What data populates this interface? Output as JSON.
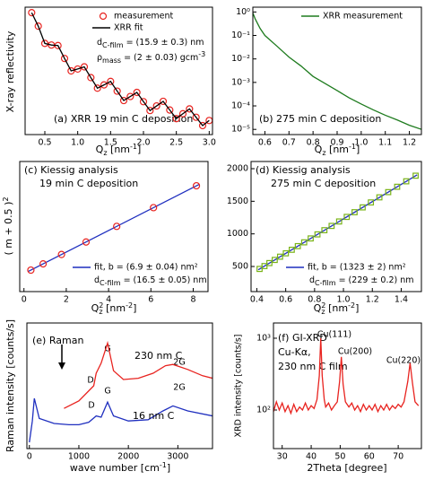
{
  "chart_data": [
    {
      "type": "line",
      "title": "(a) XRR 19 min C deposition",
      "xlabel": [
        "Q",
        "z",
        " [nm",
        "-1",
        "]"
      ],
      "ylabel": "X-ray reflectivity",
      "log_y": true,
      "xlim": [
        0.2,
        3.05
      ],
      "ylim": [
        3e-05,
        1.6
      ],
      "xticks": [
        0.5,
        {
          "value": 1,
          "label": "1.0"
        },
        1.5,
        {
          "value": 2,
          "label": "2.0"
        },
        2.5,
        {
          "value": 3,
          "label": "3.0"
        }
      ],
      "legend": "top-right",
      "notes": [
        [
          "d",
          "C-film",
          " = (15.9 ± 0.3) nm"
        ],
        [
          "ρ",
          "mass",
          " = (2 ± 0.03) gcm",
          "-3"
        ]
      ],
      "series": [
        {
          "name": "measurement",
          "color": "#e8231f",
          "style": "circles",
          "x": [
            0.3,
            0.4,
            0.5,
            0.6,
            0.7,
            0.8,
            0.9,
            1.0,
            1.1,
            1.2,
            1.3,
            1.4,
            1.5,
            1.6,
            1.7,
            1.8,
            1.9,
            2.0,
            2.1,
            2.2,
            2.3,
            2.4,
            2.5,
            2.6,
            2.7,
            2.8,
            2.9,
            3.0
          ],
          "values": [
            1,
            0.316,
            0.0724,
            0.0631,
            0.0603,
            0.02,
            0.00692,
            0.00813,
            0.00977,
            0.00389,
            0.00158,
            0.00209,
            0.00282,
            0.00123,
            0.00055,
            0.000776,
            0.0011,
            0.0005,
            0.000234,
            0.000347,
            0.000513,
            0.000245,
            0.000117,
            0.000178,
            0.000269,
            0.000132,
            6.46e-05,
            0.0001
          ]
        },
        {
          "name": "XRR fit",
          "color": "#000000",
          "style": "line",
          "x": [
            0.3,
            0.4,
            0.5,
            0.6,
            0.7,
            0.8,
            0.9,
            1.0,
            1.1,
            1.2,
            1.3,
            1.4,
            1.5,
            1.6,
            1.7,
            1.8,
            1.9,
            2.0,
            2.1,
            2.2,
            2.3,
            2.4,
            2.5,
            2.6,
            2.7,
            2.8,
            2.9,
            3.0
          ],
          "values": [
            1,
            0.316,
            0.0724,
            0.0631,
            0.0603,
            0.02,
            0.00692,
            0.00813,
            0.00977,
            0.00389,
            0.00158,
            0.00209,
            0.00282,
            0.00123,
            0.00055,
            0.000776,
            0.0011,
            0.0005,
            0.000234,
            0.000347,
            0.000513,
            0.000245,
            0.000117,
            0.000178,
            0.000269,
            0.000132,
            6.46e-05,
            0.0001
          ]
        }
      ]
    },
    {
      "type": "line",
      "title": "(b) 275 min C deposition",
      "xlabel": [
        "Q",
        "z",
        " [nm",
        "-1",
        "]"
      ],
      "log_y": true,
      "xlim": [
        0.55,
        1.25
      ],
      "ylim": [
        6e-06,
        1.6
      ],
      "xticks": [
        0.6,
        0.7,
        0.8,
        0.9,
        {
          "value": 1,
          "label": "1.0"
        },
        1.1,
        1.2
      ],
      "yticks": [
        {
          "value": 1,
          "label": "10⁰"
        },
        {
          "value": 0.1,
          "label": "10⁻¹"
        },
        {
          "value": 0.01,
          "label": "10⁻²"
        },
        {
          "value": 0.001,
          "label": "10⁻³"
        },
        {
          "value": 0.0001,
          "label": "10⁻⁴"
        },
        {
          "value": 1e-05,
          "label": "10⁻⁵"
        }
      ],
      "legend": "top-right",
      "series": [
        {
          "name": "XRR measurement",
          "color": "#1e7b1e",
          "style": "line",
          "x": [
            0.55,
            0.56,
            0.58,
            0.6,
            0.65,
            0.7,
            0.75,
            0.8,
            0.85,
            0.9,
            0.95,
            1.0,
            1.05,
            1.1,
            1.15,
            1.2,
            1.25
          ],
          "values": [
            0.9,
            0.5,
            0.2,
            0.1,
            0.035,
            0.012,
            0.005,
            0.0018,
            0.0009,
            0.00045,
            0.00022,
            0.00012,
            6.8e-05,
            4e-05,
            2.5e-05,
            1.5e-05,
            1e-05
          ]
        }
      ]
    },
    {
      "type": "line",
      "title": "(c) Kiessig analysis",
      "subtitle": "19 min C deposition",
      "xlabel": [
        "Q",
        "2",
        "z",
        " [nm",
        "-2",
        "]"
      ],
      "ylabel": [
        "( m + 0.5 )",
        "2"
      ],
      "xlim": [
        -0.2,
        8.7
      ],
      "ylim": [
        -11.5,
        71.8
      ],
      "xticks": [
        0,
        2,
        4,
        6,
        8
      ],
      "legend": "bottom-right",
      "notes": [
        [
          "d",
          "C-film",
          " = (16.5 ± 0.05) nm"
        ]
      ],
      "series": [
        {
          "name": "fit, b = (6.9 ± 0.04) nm²",
          "color": "#1f2fbf",
          "style": "line",
          "x": [
            0.2,
            8.3
          ],
          "values": [
            1.38,
            57.27
          ]
        },
        {
          "color": "#e8231f",
          "style": "circles",
          "x": [
            0.326,
            0.906,
            1.775,
            2.935,
            4.384,
            6.123,
            8.152
          ],
          "values": [
            2.25,
            6.25,
            12.25,
            20.25,
            30.25,
            42.25,
            56.25
          ]
        }
      ]
    },
    {
      "type": "line",
      "title": "(d) Kiessig analysis",
      "subtitle": "275 min C deposition",
      "xlabel": [
        "Q",
        "2",
        "z",
        " [nm",
        "-2",
        "]"
      ],
      "xlim": [
        0.36,
        1.54
      ],
      "ylim": [
        115,
        2110
      ],
      "xticks": [
        0.4,
        0.6,
        0.8,
        {
          "value": 1,
          "label": "1.0"
        },
        1.2,
        1.4
      ],
      "yticks": [
        500,
        1000,
        1500,
        2000
      ],
      "legend": "bottom-right",
      "notes": [
        [
          "d",
          "C-film",
          " = (229 ± 0.2) nm"
        ]
      ],
      "series": [
        {
          "name": "fit, b = (1323 ± 2) nm²",
          "color": "#1f2fbf",
          "style": "line",
          "x": [
            0.41,
            1.51
          ],
          "values": [
            449,
            1905
          ]
        },
        {
          "color": "#7ab317",
          "style": "squares",
          "x": [
            0.419,
            0.453,
            0.487,
            0.524,
            0.561,
            0.601,
            0.642,
            0.684,
            0.728,
            0.773,
            0.82,
            0.868,
            0.918,
            0.97,
            1.023,
            1.077,
            1.133,
            1.19,
            1.249,
            1.31,
            1.372,
            1.435,
            1.5
          ],
          "values": [
            462.25,
            506.25,
            552.25,
            600.25,
            650.25,
            702.25,
            756.25,
            812.25,
            870.25,
            930.25,
            992.25,
            1056.25,
            1122.25,
            1190.25,
            1260.25,
            1332.25,
            1406.25,
            1482.25,
            1560.25,
            1640.25,
            1722.25,
            1806.25,
            1892.25
          ]
        }
      ]
    },
    {
      "type": "line",
      "title": "(e) Raman",
      "xlabel": [
        "wave number [cm",
        "-1",
        "]"
      ],
      "ylabel": "Raman intensity [counts/s]",
      "xlim": [
        -50,
        3700
      ],
      "ylim": [
        0,
        100
      ],
      "xticks": [
        0,
        1000,
        2000,
        3000
      ],
      "legend": "inline",
      "annotations": [
        "D",
        "G",
        "2G",
        "D",
        "G",
        "2G"
      ],
      "series": [
        {
          "name": "230 nm C",
          "color": "#e8231f",
          "style": "line",
          "x": [
            700,
            1000,
            1300,
            1350,
            1450,
            1580,
            1700,
            1900,
            2200,
            2500,
            2750,
            2900,
            3200,
            3500,
            3700
          ],
          "values": [
            32,
            38,
            50,
            60,
            68,
            84,
            62,
            55,
            56,
            60,
            66,
            67,
            63,
            58,
            56
          ]
        },
        {
          "name": "16 nm C",
          "color": "#1f2fbf",
          "style": "line",
          "x": [
            0,
            60,
            100,
            200,
            500,
            800,
            1000,
            1200,
            1350,
            1450,
            1580,
            1700,
            2000,
            2400,
            2700,
            2900,
            3200,
            3700
          ],
          "values": [
            5,
            22,
            40,
            24,
            20,
            19,
            19,
            21,
            26,
            25,
            37,
            26,
            22,
            23,
            30,
            34,
            30,
            26
          ]
        }
      ]
    },
    {
      "type": "line",
      "title": "(f) GI-XRD",
      "notes": [
        "Cu-Kα,",
        "230 nm C film"
      ],
      "xlabel": "2Theta [degree]",
      "ylabel": "XRD intensity [counts/s]",
      "log_y": true,
      "xlim": [
        27,
        78
      ],
      "ylim": [
        29,
        1630
      ],
      "xticks": [
        30,
        40,
        50,
        60,
        70
      ],
      "yticks": [
        {
          "value": 1000,
          "label": "10³"
        },
        {
          "value": 100,
          "label": "10²"
        }
      ],
      "annotations": [
        "Cu(111)",
        "Cu(200)",
        "Cu(220)"
      ],
      "series": [
        {
          "color": "#e8231f",
          "style": "line",
          "x": [
            27,
            28,
            29,
            30,
            31,
            32,
            33,
            34,
            35,
            36,
            37,
            38,
            39,
            40,
            41,
            42,
            42.8,
            43.3,
            43.8,
            44.5,
            45,
            46,
            47,
            48,
            49,
            49.8,
            50.4,
            51,
            51.8,
            53,
            54,
            55,
            56,
            57,
            58,
            59,
            60,
            61,
            62,
            63,
            64,
            65,
            66,
            67,
            68,
            69,
            70,
            71,
            72,
            73.3,
            74.1,
            74.9,
            75.8,
            77
          ],
          "values": [
            95,
            130,
            100,
            125,
            95,
            115,
            90,
            120,
            95,
            110,
            100,
            125,
            100,
            115,
            105,
            140,
            300,
            1000,
            300,
            140,
            110,
            125,
            100,
            115,
            130,
            250,
            550,
            230,
            130,
            110,
            125,
            100,
            115,
            95,
            120,
            100,
            115,
            100,
            120,
            95,
            115,
            100,
            120,
            100,
            115,
            105,
            120,
            110,
            130,
            250,
            450,
            240,
            130,
            115
          ]
        }
      ]
    }
  ]
}
